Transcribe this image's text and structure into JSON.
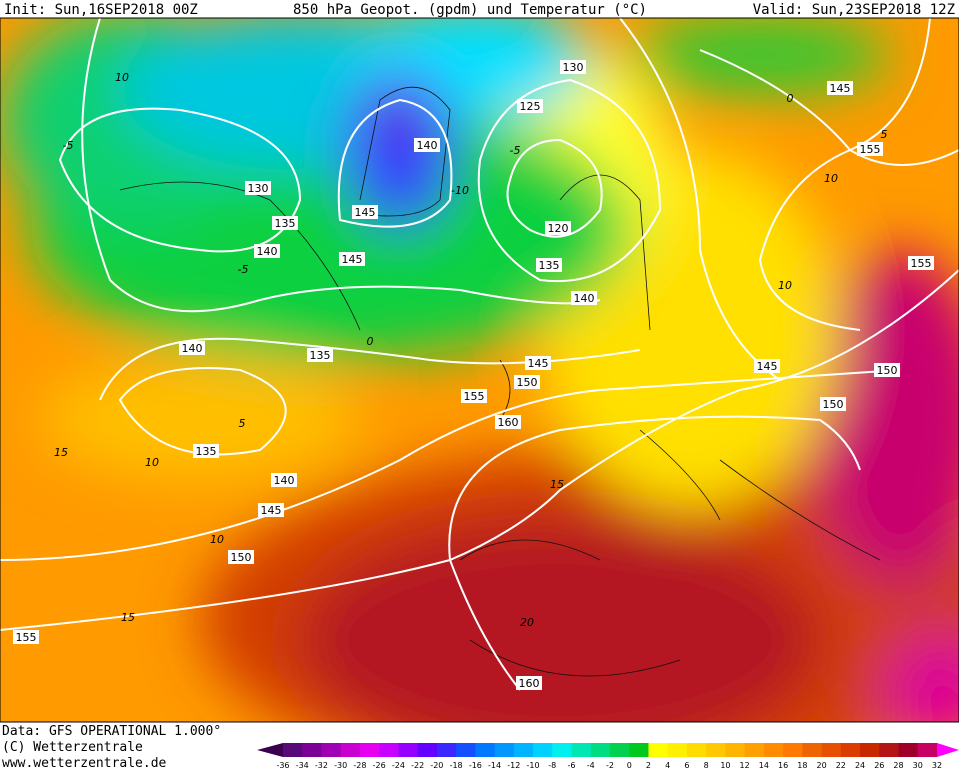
{
  "header": {
    "init": "Init: Sun,16SEP2018 00Z",
    "title": "850 hPa Geopot. (gpdm) und Temperatur (°C)",
    "valid": "Valid: Sun,23SEP2018 12Z"
  },
  "map": {
    "geopotential_labels": [
      130,
      145,
      125,
      140,
      155,
      130,
      120,
      135,
      140,
      145,
      145,
      135,
      155,
      140,
      140,
      135,
      145,
      150,
      145,
      150,
      155,
      150,
      160,
      135,
      140,
      145,
      150,
      155,
      160
    ],
    "temperature_labels": [
      10,
      0,
      -5,
      5,
      -5,
      -10,
      10,
      -5,
      10,
      0,
      5,
      15,
      10,
      15,
      10,
      15,
      20
    ]
  },
  "footer": {
    "data": "Data: GFS OPERATIONAL 1.000°",
    "copyright": "(C) Wetterzentrale",
    "url": "www.wetterzentrale.de"
  },
  "colorbar": {
    "labels": [
      -36,
      -34,
      -32,
      -30,
      -28,
      -26,
      -24,
      -22,
      -20,
      -18,
      -16,
      -14,
      -12,
      -10,
      -8,
      -6,
      -4,
      -2,
      0,
      2,
      4,
      6,
      8,
      10,
      12,
      14,
      16,
      18,
      20,
      22,
      24,
      26,
      28,
      30,
      32
    ],
    "colors": [
      "#3c0050",
      "#5a0a78",
      "#7d0096",
      "#a000b4",
      "#c800d2",
      "#e600f0",
      "#c800ff",
      "#9600ff",
      "#6400ff",
      "#3c28ff",
      "#1450ff",
      "#0078ff",
      "#0096ff",
      "#00b4ff",
      "#00d2ff",
      "#00f0f0",
      "#00e6b4",
      "#00dc82",
      "#00d250",
      "#00c81e",
      "#ffff00",
      "#fff000",
      "#ffdc00",
      "#ffc800",
      "#ffb400",
      "#ffa000",
      "#ff8c00",
      "#ff7800",
      "#f06400",
      "#e65000",
      "#dc3c00",
      "#c82800",
      "#b41414",
      "#a00028",
      "#c80064",
      "#ff00ff"
    ]
  }
}
